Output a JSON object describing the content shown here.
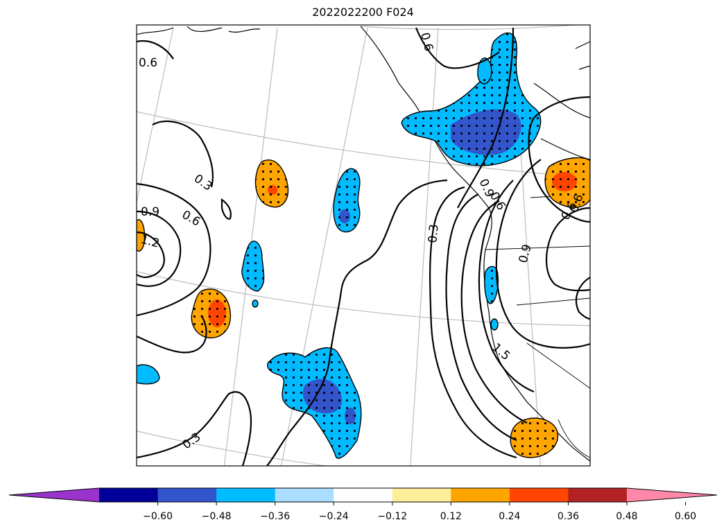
{
  "title": "2022022200 F024",
  "colorbar": {
    "ticks": [
      "−0.60",
      "−0.48",
      "−0.36",
      "−0.24",
      "−0.12",
      "0.12",
      "0.24",
      "0.36",
      "0.48",
      "0.60"
    ],
    "colors": [
      "#9933cc",
      "#000099",
      "#3355cc",
      "#00bbff",
      "#aaddff",
      "#ffffff",
      "#ffee99",
      "#ffa500",
      "#ff4500",
      "#b22222",
      "#ff88aa"
    ]
  },
  "contour_labels": [
    "0.6",
    "0.3",
    "0.9",
    "0.6",
    "1.2",
    "0.3",
    "0.3",
    "0.6",
    "0.9",
    "0.6",
    "0.9",
    "1.5",
    "0.6",
    "0.6"
  ]
}
